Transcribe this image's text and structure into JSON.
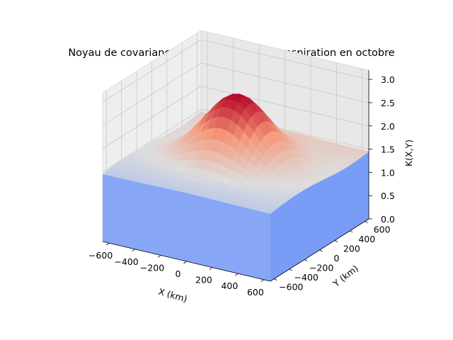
{
  "chart_data": {
    "type": "surface3d",
    "title": "Noyau de covariance spatial de l'évapotranspiration en octobre",
    "xlabel": "X (km)",
    "ylabel": "Y (km)",
    "zlabel": "K(X,Y)",
    "x_ticks": [
      "−600",
      "−400",
      "−200",
      "0",
      "200",
      "400",
      "600"
    ],
    "y_ticks": [
      "−600",
      "−400",
      "−200",
      "0",
      "200",
      "400",
      "600"
    ],
    "z_ticks": [
      "0.0",
      "0.5",
      "1.0",
      "1.5",
      "2.0",
      "2.5",
      "3.0"
    ],
    "xlim": [
      -650,
      650
    ],
    "ylim": [
      -650,
      650
    ],
    "zlim": [
      0,
      3.2
    ],
    "colormap": "coolwarm",
    "color_low": "#3b4cc0",
    "color_mid": "#dddddd",
    "color_high": "#b40426",
    "peak": {
      "x": 0,
      "y": 0,
      "value": 2.9
    },
    "plateau_value": 1.45,
    "grid": true
  }
}
